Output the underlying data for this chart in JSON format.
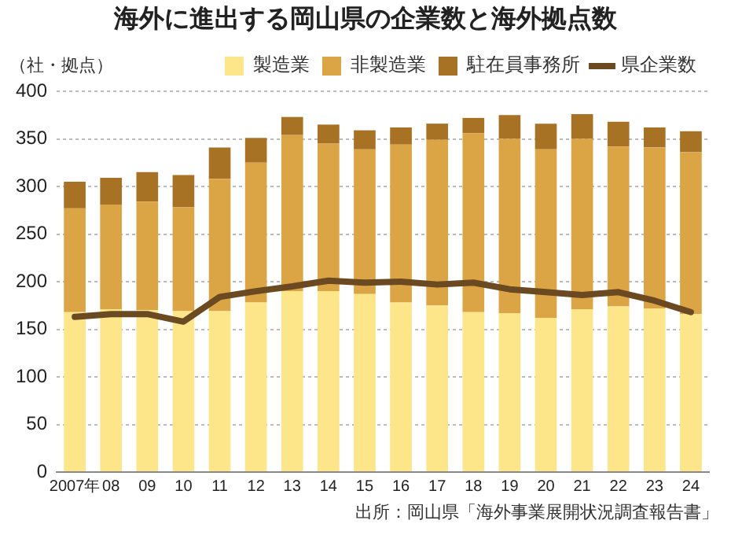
{
  "chart_data": {
    "type": "bar",
    "title": "海外に進出する岡山県の企業数と海外拠点数",
    "ylabel": "（社・拠点）",
    "stacked": true,
    "grid": "y",
    "legend": "top right",
    "marker": "none",
    "categories": [
      "2007年",
      "08",
      "09",
      "10",
      "11",
      "12",
      "13",
      "14",
      "15",
      "16",
      "17",
      "18",
      "19",
      "20",
      "21",
      "22",
      "23",
      "24"
    ],
    "ylim": [
      0,
      400
    ],
    "yticks": [
      0,
      50,
      100,
      150,
      200,
      250,
      300,
      350,
      400
    ],
    "series": [
      {
        "name": "製造業",
        "color": "#fde58a",
        "values": [
          168,
          171,
          170,
          169,
          169,
          178,
          190,
          190,
          187,
          178,
          175,
          168,
          167,
          162,
          171,
          174,
          172,
          166
        ]
      },
      {
        "name": "非製造業",
        "color": "#dba444",
        "values": [
          109,
          110,
          114,
          109,
          139,
          147,
          164,
          155,
          152,
          166,
          174,
          188,
          183,
          177,
          179,
          168,
          169,
          170
        ]
      },
      {
        "name": "駐在員事務所",
        "color": "#a87224",
        "values": [
          28,
          28,
          31,
          34,
          33,
          26,
          19,
          20,
          20,
          18,
          17,
          16,
          25,
          27,
          26,
          26,
          21,
          22
        ]
      },
      {
        "name": "県企業数",
        "type": "line",
        "color": "#6b4a22",
        "values": [
          163,
          166,
          166,
          158,
          184,
          190,
          195,
          201,
          199,
          200,
          197,
          199,
          192,
          189,
          186,
          189,
          180,
          168
        ]
      }
    ],
    "annotations": [
      "出所：岡山県「海外事業展開状況調査報告書」"
    ]
  }
}
